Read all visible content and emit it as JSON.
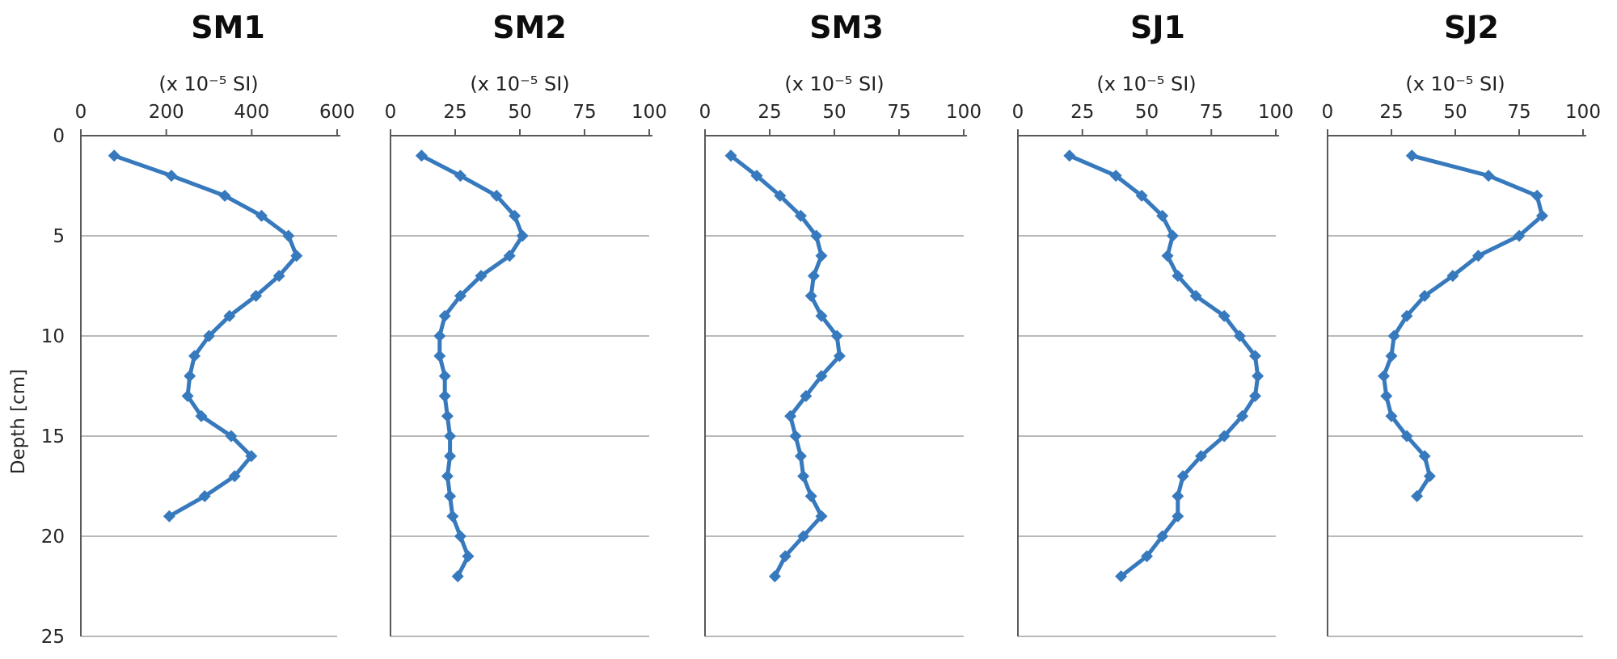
{
  "figure": {
    "y_label": "Depth [cm]",
    "depth_ticks": [
      0,
      5,
      10,
      15,
      20,
      25
    ],
    "depth_max": 25,
    "line_color": "#3779bd",
    "gridline_color": "#8f8f8f",
    "axis_color": "#595959",
    "background": "#ffffff"
  },
  "chart_data": [
    {
      "type": "line",
      "title": "SM1",
      "unit_label": "(x 10⁻⁵ SI)",
      "xlabel": "(x 10⁻⁵ SI)",
      "ylabel": "Depth [cm]",
      "xlim": [
        0,
        600
      ],
      "x_ticks": [
        0,
        200,
        400,
        600
      ],
      "ylim": [
        0,
        25
      ],
      "depths": [
        1,
        2,
        3,
        4,
        5,
        6,
        7,
        8,
        9,
        10,
        11,
        12,
        13,
        14,
        15,
        16,
        17,
        18,
        19
      ],
      "values": [
        78,
        212,
        337,
        423,
        486,
        505,
        464,
        410,
        348,
        300,
        266,
        255,
        250,
        282,
        352,
        399,
        360,
        290,
        207
      ]
    },
    {
      "type": "line",
      "title": "SM2",
      "unit_label": "(x 10⁻⁵ SI)",
      "xlabel": "(x 10⁻⁵ SI)",
      "ylabel": "Depth [cm]",
      "xlim": [
        0,
        100
      ],
      "x_ticks": [
        0,
        25,
        50,
        75,
        100
      ],
      "ylim": [
        0,
        25
      ],
      "depths": [
        1,
        2,
        3,
        4,
        5,
        6,
        7,
        8,
        9,
        10,
        11,
        12,
        13,
        14,
        15,
        16,
        17,
        18,
        19,
        20,
        21,
        22
      ],
      "values": [
        12,
        27,
        41,
        48,
        51,
        46,
        35,
        27,
        21,
        19,
        19,
        21,
        21,
        22,
        23,
        23,
        22,
        23,
        24,
        27,
        30,
        26
      ]
    },
    {
      "type": "line",
      "title": "SM3",
      "unit_label": "(x 10⁻⁵ SI)",
      "xlabel": "(x 10⁻⁵ SI)",
      "ylabel": "Depth [cm]",
      "xlim": [
        0,
        100
      ],
      "x_ticks": [
        0,
        25,
        50,
        75,
        100
      ],
      "ylim": [
        0,
        25
      ],
      "depths": [
        1,
        2,
        3,
        4,
        5,
        6,
        7,
        8,
        9,
        10,
        11,
        12,
        13,
        14,
        15,
        16,
        17,
        18,
        19,
        20,
        21,
        22
      ],
      "values": [
        10,
        20,
        29,
        37,
        43,
        45,
        42,
        41,
        45,
        51,
        52,
        45,
        39,
        33,
        35,
        37,
        38,
        41,
        45,
        38,
        31,
        27
      ]
    },
    {
      "type": "line",
      "title": "SJ1",
      "unit_label": "(x 10⁻⁵ SI)",
      "xlabel": "(x 10⁻⁵ SI)",
      "ylabel": "Depth [cm]",
      "xlim": [
        0,
        100
      ],
      "x_ticks": [
        0,
        25,
        50,
        75,
        100
      ],
      "ylim": [
        0,
        25
      ],
      "depths": [
        1,
        2,
        3,
        4,
        5,
        6,
        7,
        8,
        9,
        10,
        11,
        12,
        13,
        14,
        15,
        16,
        17,
        18,
        19,
        20,
        21,
        22
      ],
      "values": [
        20,
        38,
        48,
        56,
        60,
        58,
        62,
        69,
        80,
        86,
        92,
        93,
        92,
        87,
        80,
        71,
        64,
        62,
        62,
        56,
        50,
        40
      ]
    },
    {
      "type": "line",
      "title": "SJ2",
      "unit_label": "(x 10⁻⁵ SI)",
      "xlabel": "(x 10⁻⁵ SI)",
      "ylabel": "Depth [cm]",
      "xlim": [
        0,
        100
      ],
      "x_ticks": [
        0,
        25,
        50,
        75,
        100
      ],
      "ylim": [
        0,
        25
      ],
      "depths": [
        1,
        2,
        3,
        4,
        5,
        6,
        7,
        8,
        9,
        10,
        11,
        12,
        13,
        14,
        15,
        16,
        17,
        18
      ],
      "values": [
        33,
        63,
        82,
        84,
        75,
        59,
        49,
        38,
        31,
        26,
        25,
        22,
        23,
        25,
        31,
        38,
        40,
        35
      ]
    }
  ]
}
